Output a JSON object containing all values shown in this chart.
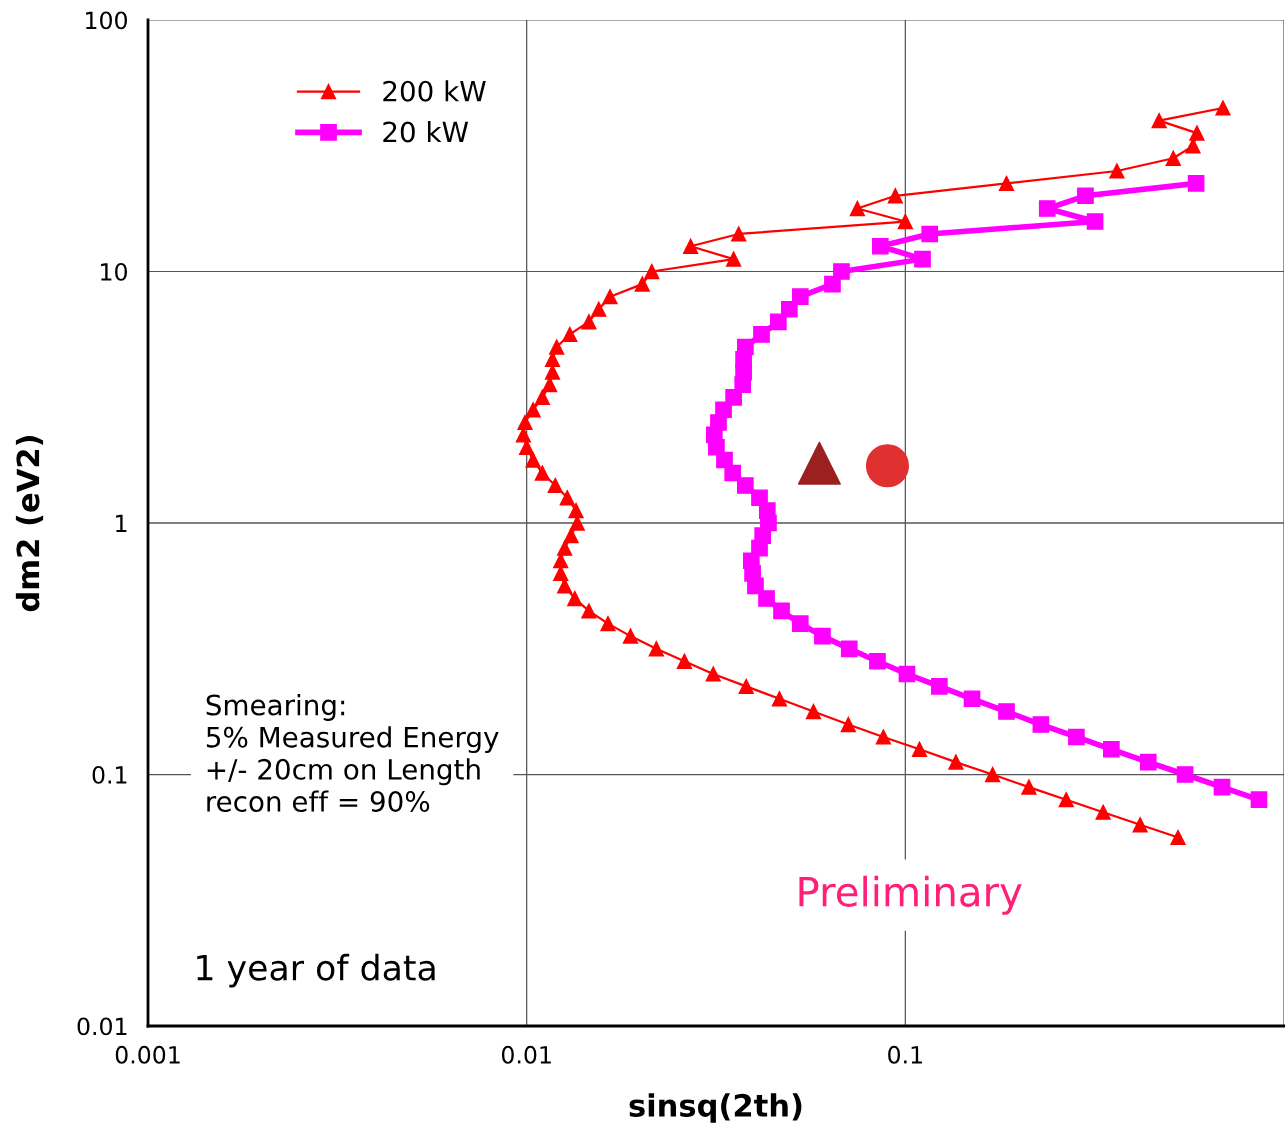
{
  "chart_data": {
    "type": "line",
    "xlabel": "sinsq(2th)",
    "ylabel": "dm2 (eV2)",
    "log": "xy",
    "xlim": [
      0.001,
      1
    ],
    "ylim": [
      0.01,
      100
    ],
    "xticks": [
      0.001,
      0.01,
      0.1,
      {
        "value": 1,
        "label": null
      }
    ],
    "yticks": [
      0.01,
      0.1,
      1,
      10,
      100
    ],
    "grid": true,
    "legend": "top left",
    "series": [
      {
        "name": "200 kW",
        "color": "#ff0000",
        "marker": "triangle",
        "line_style": "solid",
        "x": [
          0.69,
          0.468,
          0.589,
          0.575,
          0.51,
          0.362,
          0.185,
          0.0941,
          0.0747,
          0.1,
          0.0363,
          0.0271,
          0.0352,
          0.0214,
          0.0202,
          0.0166,
          0.0155,
          0.0146,
          0.013,
          0.012,
          0.0117,
          0.0117,
          0.0115,
          0.011,
          0.0104,
          0.0099,
          0.0098,
          0.01,
          0.0104,
          0.011,
          0.0119,
          0.0128,
          0.0135,
          0.0136,
          0.0131,
          0.0126,
          0.0123,
          0.0123,
          0.0126,
          0.0134,
          0.0146,
          0.0164,
          0.0188,
          0.022,
          0.0261,
          0.0311,
          0.038,
          0.0465,
          0.0572,
          0.0707,
          0.0875,
          0.109,
          0.136,
          0.17,
          0.212,
          0.266,
          0.333,
          0.417,
          0.525
        ],
        "values": [
          44.7,
          39.8,
          35.5,
          31.6,
          28.2,
          25.1,
          22.4,
          20.0,
          17.8,
          15.8,
          14.1,
          12.6,
          11.2,
          10.0,
          8.91,
          7.94,
          7.08,
          6.31,
          5.62,
          5.01,
          4.47,
          3.98,
          3.55,
          3.16,
          2.82,
          2.51,
          2.24,
          2.0,
          1.78,
          1.58,
          1.41,
          1.26,
          1.12,
          1.0,
          0.891,
          0.794,
          0.708,
          0.631,
          0.562,
          0.501,
          0.447,
          0.398,
          0.355,
          0.316,
          0.282,
          0.251,
          0.224,
          0.2,
          0.178,
          0.158,
          0.141,
          0.126,
          0.112,
          0.1,
          0.0891,
          0.0794,
          0.0708,
          0.0631,
          0.0562
        ]
      },
      {
        "name": "20 kW",
        "color": "#ff00ff",
        "marker": "square",
        "line_style": "solid",
        "x": [
          0.586,
          0.299,
          0.237,
          0.317,
          0.116,
          0.0859,
          0.111,
          0.0678,
          0.0642,
          0.0528,
          0.0494,
          0.0462,
          0.0417,
          0.0378,
          0.0374,
          0.0374,
          0.0372,
          0.0352,
          0.0331,
          0.0321,
          0.0313,
          0.0317,
          0.0333,
          0.035,
          0.0378,
          0.0412,
          0.0432,
          0.0435,
          0.042,
          0.0412,
          0.0392,
          0.0395,
          0.0402,
          0.043,
          0.0471,
          0.0528,
          0.0604,
          0.0711,
          0.0844,
          0.101,
          0.123,
          0.15,
          0.185,
          0.228,
          0.283,
          0.35,
          0.438,
          0.548,
          0.686,
          0.859
        ],
        "values": [
          22.4,
          20.0,
          17.8,
          15.8,
          14.1,
          12.6,
          11.2,
          10.0,
          8.91,
          7.94,
          7.08,
          6.31,
          5.62,
          5.01,
          4.47,
          3.98,
          3.55,
          3.16,
          2.82,
          2.51,
          2.24,
          2.0,
          1.78,
          1.58,
          1.41,
          1.26,
          1.12,
          1.0,
          0.891,
          0.794,
          0.708,
          0.631,
          0.562,
          0.501,
          0.447,
          0.398,
          0.355,
          0.316,
          0.282,
          0.251,
          0.224,
          0.2,
          0.178,
          0.158,
          0.141,
          0.126,
          0.112,
          0.1,
          0.0891,
          0.0794
        ]
      },
      {
        "type": "scatter",
        "color": "#9b2020",
        "marker": "triangle",
        "x": [
          0.0593
        ],
        "values": [
          1.73
        ]
      },
      {
        "type": "scatter",
        "color": "#e03030",
        "marker": "circle",
        "x": [
          0.0897
        ],
        "values": [
          1.69
        ]
      }
    ],
    "annotations": [
      "Smearing:\n5% Measured Energy\n+/- 20cm on Length\nrecon eff = 90%",
      "Preliminary",
      "1 year of data"
    ]
  }
}
